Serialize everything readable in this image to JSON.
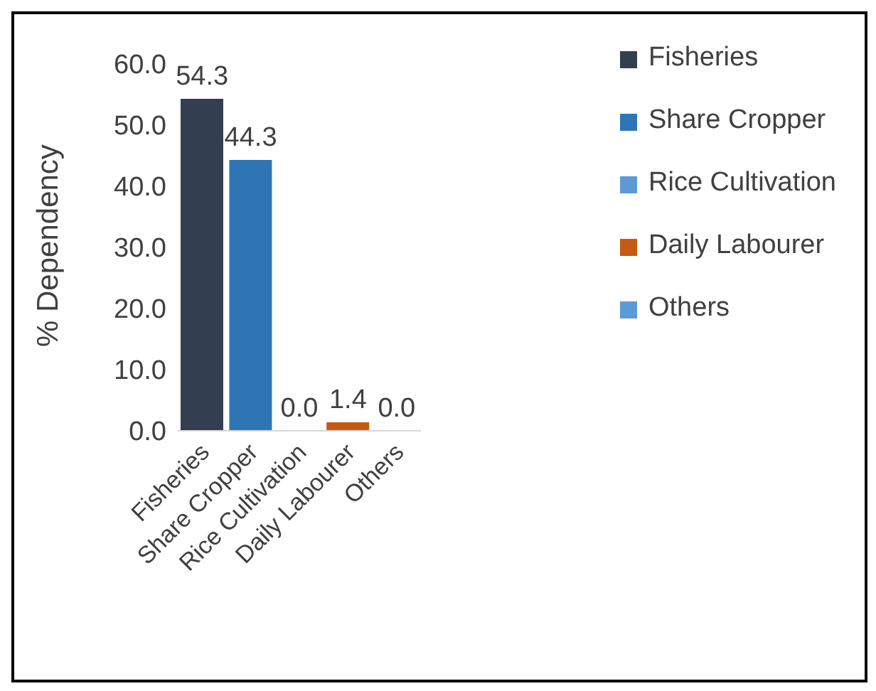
{
  "chart_data": {
    "type": "bar",
    "ylabel": "% Dependency",
    "stacked": true,
    "categories": [
      "Fisheries",
      "Share Cropper",
      "Rice Cultivation",
      "Daily Labourer",
      "Others"
    ],
    "series": [
      {
        "name": "Fisheries",
        "color": "#333f50",
        "values": [
          54.3,
          null,
          null,
          null,
          null
        ],
        "value_labels": [
          "54.3",
          null,
          null,
          null,
          null
        ]
      },
      {
        "name": "Share Cropper",
        "color": "#2e75b6",
        "values": [
          null,
          44.3,
          null,
          null,
          null
        ],
        "value_labels": [
          null,
          "44.3",
          null,
          null,
          null
        ]
      },
      {
        "name": "Rice Cultivation",
        "color": "#5b9bd5",
        "values": [
          null,
          null,
          0.0,
          null,
          null
        ],
        "value_labels": [
          null,
          null,
          "0.0",
          null,
          null
        ]
      },
      {
        "name": "Daily Labourer",
        "color": "#c55a11",
        "values": [
          null,
          null,
          null,
          1.4,
          null
        ],
        "value_labels": [
          null,
          null,
          null,
          "1.4",
          null
        ]
      },
      {
        "name": "Others",
        "color": "#5b9bd5",
        "values": [
          null,
          null,
          null,
          null,
          0.0
        ],
        "value_labels": [
          null,
          null,
          null,
          null,
          "0.0"
        ]
      }
    ],
    "ylim": [
      0,
      60
    ],
    "yticks": [
      {
        "value": 0,
        "label": "0.0"
      },
      {
        "value": 10,
        "label": "10.0"
      },
      {
        "value": 20,
        "label": "20.0"
      },
      {
        "value": 30,
        "label": "30.0"
      },
      {
        "value": 40,
        "label": "40.0"
      },
      {
        "value": 50,
        "label": "50.0"
      },
      {
        "value": 60,
        "label": "60.0"
      }
    ],
    "grid": false,
    "legend": "top right"
  }
}
